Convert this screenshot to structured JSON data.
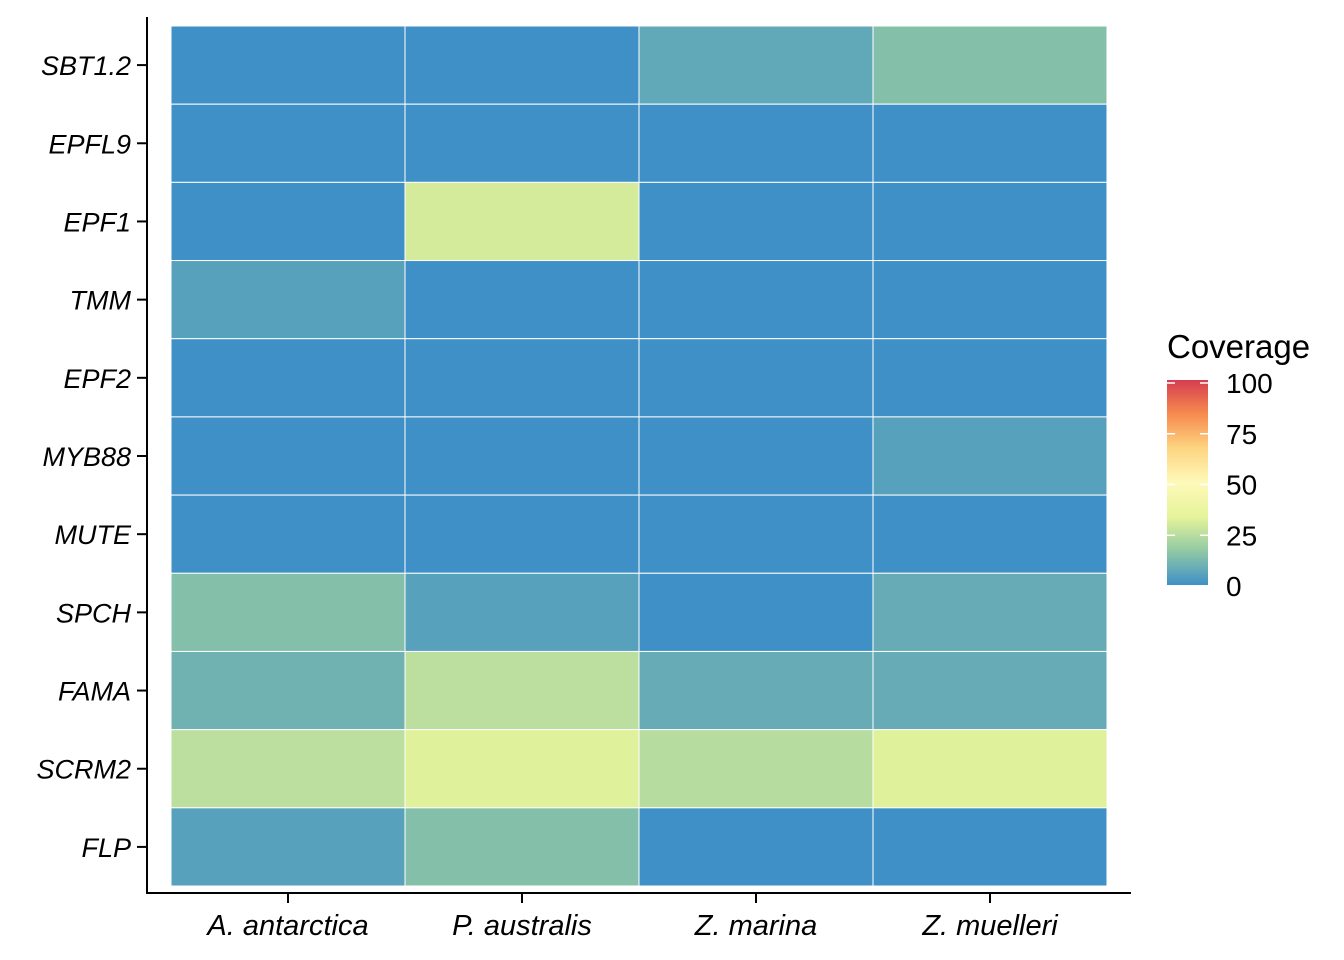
{
  "chart_data": {
    "type": "heatmap",
    "x_categories": [
      "A. antarctica",
      "P. australis",
      "Z. marina",
      "Z. muelleri"
    ],
    "y_categories": [
      "SBT1.2",
      "EPFL9",
      "EPF1",
      "TMM",
      "EPF2",
      "MYB88",
      "MUTE",
      "SPCH",
      "FAMA",
      "SCRM2",
      "FLP"
    ],
    "values": [
      [
        0,
        0,
        7,
        14
      ],
      [
        0,
        0,
        0,
        0
      ],
      [
        0,
        30,
        0,
        0
      ],
      [
        5,
        0,
        0,
        0
      ],
      [
        0,
        0,
        0,
        0
      ],
      [
        0,
        0,
        0,
        5
      ],
      [
        0,
        0,
        0,
        0
      ],
      [
        14,
        5,
        0,
        8
      ],
      [
        10,
        25,
        8,
        8
      ],
      [
        25,
        32,
        24,
        32
      ],
      [
        5,
        14,
        0,
        0
      ]
    ],
    "legend": {
      "title": "Coverage",
      "ticks": [
        "100",
        "75",
        "50",
        "25",
        "0"
      ],
      "range": [
        0,
        100
      ],
      "palette": [
        "#3F90C6",
        "#91C9A4",
        "#E6F49A",
        "#FEF9BA",
        "#FDD581",
        "#F78B4F",
        "#D53E4F"
      ],
      "placement": "right"
    },
    "grid": false
  }
}
